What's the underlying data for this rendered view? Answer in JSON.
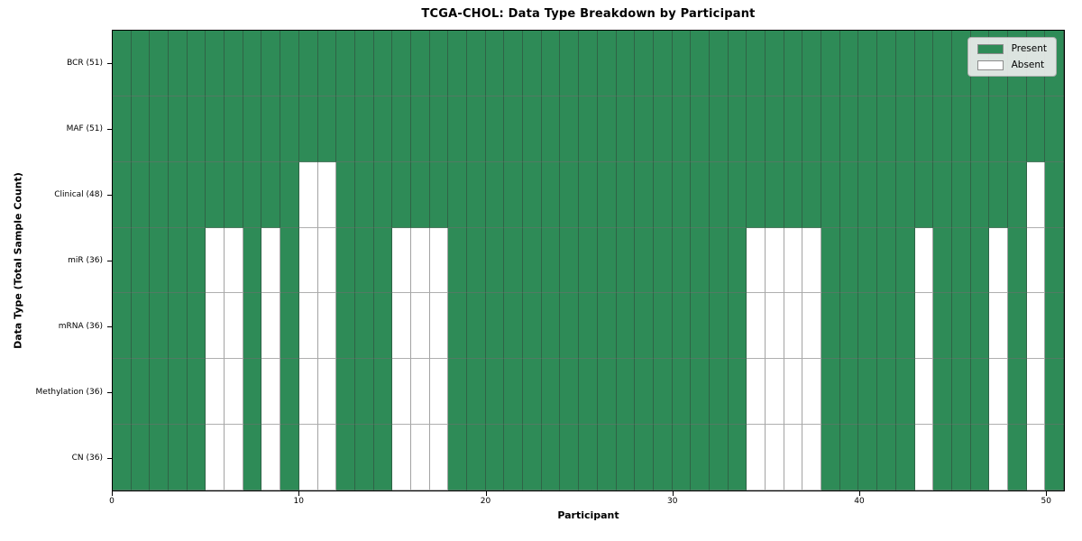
{
  "chart_data": {
    "type": "heatmap",
    "title": "TCGA-CHOL: Data Type Breakdown by Participant",
    "xlabel": "Participant",
    "ylabel": "Data Type (Total Sample Count)",
    "n_participants": 51,
    "x_range": [
      0,
      51
    ],
    "x_ticks": [
      0,
      10,
      20,
      30,
      40,
      50
    ],
    "grid": true,
    "rows": [
      {
        "label": "BCR (51)",
        "data_type": "BCR",
        "total": 51,
        "absent_participants": []
      },
      {
        "label": "MAF (51)",
        "data_type": "MAF",
        "total": 51,
        "absent_participants": []
      },
      {
        "label": "Clinical (48)",
        "data_type": "Clinical",
        "total": 48,
        "absent_participants": [
          10,
          11,
          49
        ]
      },
      {
        "label": "miR (36)",
        "data_type": "miR",
        "total": 36,
        "absent_participants": [
          5,
          6,
          8,
          10,
          11,
          15,
          16,
          17,
          34,
          35,
          36,
          37,
          43,
          47,
          49
        ]
      },
      {
        "label": "mRNA (36)",
        "data_type": "mRNA",
        "total": 36,
        "absent_participants": [
          5,
          6,
          8,
          10,
          11,
          15,
          16,
          17,
          34,
          35,
          36,
          37,
          43,
          47,
          49
        ]
      },
      {
        "label": "Methylation (36)",
        "data_type": "Methylation",
        "total": 36,
        "absent_participants": [
          5,
          6,
          8,
          10,
          11,
          15,
          16,
          17,
          34,
          35,
          36,
          37,
          43,
          47,
          49
        ]
      },
      {
        "label": "CN (36)",
        "data_type": "CN",
        "total": 36,
        "absent_participants": [
          5,
          6,
          8,
          10,
          11,
          15,
          16,
          17,
          34,
          35,
          36,
          37,
          43,
          47,
          49
        ]
      }
    ],
    "legend": {
      "position": "upper right",
      "entries": [
        {
          "label": "Present",
          "color": "#2e8b57"
        },
        {
          "label": "Absent",
          "color": "#ffffff"
        }
      ]
    },
    "colors": {
      "present": "#2e8b57",
      "absent": "#ffffff",
      "grid": "#555555",
      "spine": "#000000"
    }
  }
}
